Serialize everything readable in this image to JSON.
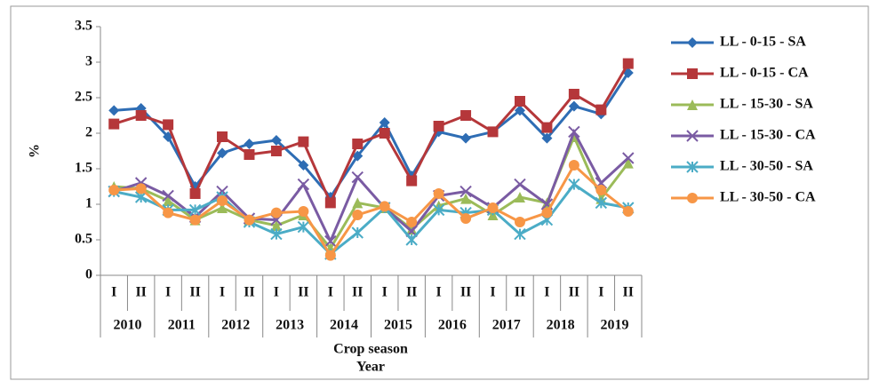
{
  "chart_data": {
    "type": "line",
    "y_label": "%",
    "x_label": "Crop season",
    "x_group_label": "Year",
    "categories": [
      "I",
      "II",
      "I",
      "II",
      "I",
      "II",
      "I",
      "II",
      "I",
      "II",
      "I",
      "II",
      "I",
      "II",
      "I",
      "II",
      "I",
      "II",
      "I",
      "II"
    ],
    "year_groups": [
      "2010",
      "2011",
      "2012",
      "2013",
      "2014",
      "2015",
      "2016",
      "2017",
      "2018",
      "2019"
    ],
    "ylim": [
      0,
      3.5
    ],
    "yticks": [
      0,
      0.5,
      1,
      1.5,
      2,
      2.5,
      3,
      3.5
    ],
    "grid": false,
    "legend": "right",
    "series": [
      {
        "name": "LL - 0-15 - SA",
        "color": "#2e6db4",
        "marker": "diamond",
        "values": [
          2.32,
          2.35,
          1.95,
          1.25,
          1.72,
          1.85,
          1.9,
          1.55,
          1.1,
          1.68,
          2.15,
          1.4,
          2.02,
          1.93,
          2.02,
          2.32,
          1.93,
          2.38,
          2.27,
          2.85
        ]
      },
      {
        "name": "LL - 0-15 - CA",
        "color": "#b5373a",
        "marker": "square",
        "values": [
          2.13,
          2.25,
          2.12,
          1.15,
          1.95,
          1.7,
          1.75,
          1.88,
          1.02,
          1.85,
          2.0,
          1.33,
          2.1,
          2.25,
          2.02,
          2.45,
          2.08,
          2.55,
          2.33,
          2.98
        ]
      },
      {
        "name": "LL - 15-30 - SA",
        "color": "#9bbb59",
        "marker": "triangle",
        "values": [
          1.25,
          1.22,
          1.05,
          0.78,
          0.95,
          0.78,
          0.7,
          0.85,
          0.38,
          1.02,
          0.95,
          0.65,
          0.98,
          1.08,
          0.85,
          1.1,
          1.02,
          1.95,
          1.08,
          1.58
        ]
      },
      {
        "name": "LL - 15-30 - CA",
        "color": "#7a5ba3",
        "marker": "x",
        "values": [
          1.18,
          1.3,
          1.12,
          0.82,
          1.18,
          0.8,
          0.78,
          1.28,
          0.48,
          1.38,
          0.95,
          0.62,
          1.12,
          1.18,
          0.95,
          1.28,
          1.0,
          2.02,
          1.3,
          1.65
        ]
      },
      {
        "name": "LL - 30-50 - SA",
        "color": "#4bacc6",
        "marker": "asterisk",
        "values": [
          1.18,
          1.1,
          0.92,
          0.92,
          1.1,
          0.75,
          0.58,
          0.68,
          0.3,
          0.6,
          0.95,
          0.5,
          0.92,
          0.88,
          0.92,
          0.58,
          0.78,
          1.28,
          1.02,
          0.95
        ]
      },
      {
        "name": "LL - 30-50 - CA",
        "color": "#f79646",
        "marker": "circle",
        "values": [
          1.2,
          1.22,
          0.88,
          0.78,
          1.05,
          0.78,
          0.88,
          0.9,
          0.28,
          0.85,
          0.97,
          0.75,
          1.15,
          0.8,
          0.95,
          0.75,
          0.88,
          1.55,
          1.2,
          0.9
        ]
      }
    ]
  }
}
